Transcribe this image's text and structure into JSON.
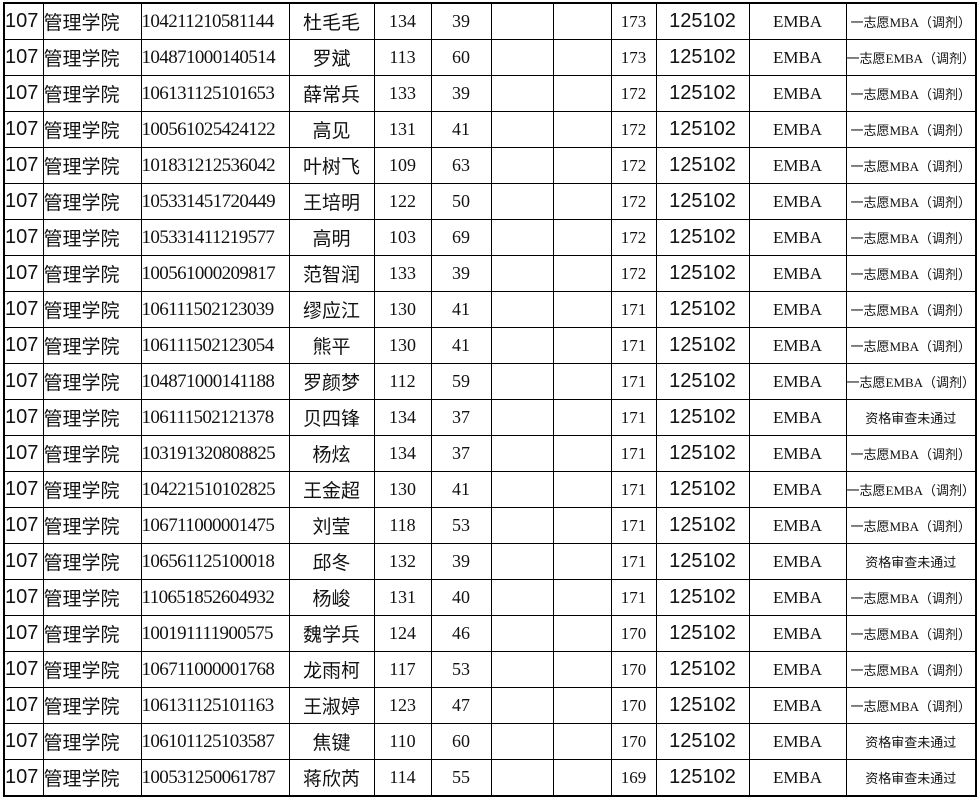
{
  "table": {
    "fields": [
      "dept_code",
      "dept_name",
      "candidate_id",
      "name",
      "score1",
      "score2",
      "blank1",
      "blank2",
      "total",
      "program_code",
      "program_name",
      "remark"
    ],
    "rows": [
      {
        "dept_code": "107",
        "dept_name": "管理学院",
        "candidate_id": "104211210581144",
        "name": "杜毛毛",
        "score1": "134",
        "score2": "39",
        "blank1": "",
        "blank2": "",
        "total": "173",
        "program_code": "125102",
        "program_name": "EMBA",
        "remark": "一志愿MBA（调剂）"
      },
      {
        "dept_code": "107",
        "dept_name": "管理学院",
        "candidate_id": "104871000140514",
        "name": "罗斌",
        "score1": "113",
        "score2": "60",
        "blank1": "",
        "blank2": "",
        "total": "173",
        "program_code": "125102",
        "program_name": "EMBA",
        "remark": "一志愿EMBA（调剂）"
      },
      {
        "dept_code": "107",
        "dept_name": "管理学院",
        "candidate_id": "106131125101653",
        "name": "薛常兵",
        "score1": "133",
        "score2": "39",
        "blank1": "",
        "blank2": "",
        "total": "172",
        "program_code": "125102",
        "program_name": "EMBA",
        "remark": "一志愿MBA（调剂）"
      },
      {
        "dept_code": "107",
        "dept_name": "管理学院",
        "candidate_id": "100561025424122",
        "name": "高见",
        "score1": "131",
        "score2": "41",
        "blank1": "",
        "blank2": "",
        "total": "172",
        "program_code": "125102",
        "program_name": "EMBA",
        "remark": "一志愿MBA（调剂）"
      },
      {
        "dept_code": "107",
        "dept_name": "管理学院",
        "candidate_id": "101831212536042",
        "name": "叶树飞",
        "score1": "109",
        "score2": "63",
        "blank1": "",
        "blank2": "",
        "total": "172",
        "program_code": "125102",
        "program_name": "EMBA",
        "remark": "一志愿MBA（调剂）"
      },
      {
        "dept_code": "107",
        "dept_name": "管理学院",
        "candidate_id": "105331451720449",
        "name": "王培明",
        "score1": "122",
        "score2": "50",
        "blank1": "",
        "blank2": "",
        "total": "172",
        "program_code": "125102",
        "program_name": "EMBA",
        "remark": "一志愿MBA（调剂）"
      },
      {
        "dept_code": "107",
        "dept_name": "管理学院",
        "candidate_id": "105331411219577",
        "name": "高明",
        "score1": "103",
        "score2": "69",
        "blank1": "",
        "blank2": "",
        "total": "172",
        "program_code": "125102",
        "program_name": "EMBA",
        "remark": "一志愿MBA（调剂）"
      },
      {
        "dept_code": "107",
        "dept_name": "管理学院",
        "candidate_id": "100561000209817",
        "name": "范智润",
        "score1": "133",
        "score2": "39",
        "blank1": "",
        "blank2": "",
        "total": "172",
        "program_code": "125102",
        "program_name": "EMBA",
        "remark": "一志愿MBA（调剂）"
      },
      {
        "dept_code": "107",
        "dept_name": "管理学院",
        "candidate_id": "106111502123039",
        "name": "缪应江",
        "score1": "130",
        "score2": "41",
        "blank1": "",
        "blank2": "",
        "total": "171",
        "program_code": "125102",
        "program_name": "EMBA",
        "remark": "一志愿MBA（调剂）"
      },
      {
        "dept_code": "107",
        "dept_name": "管理学院",
        "candidate_id": "106111502123054",
        "name": "熊平",
        "score1": "130",
        "score2": "41",
        "blank1": "",
        "blank2": "",
        "total": "171",
        "program_code": "125102",
        "program_name": "EMBA",
        "remark": "一志愿MBA（调剂）"
      },
      {
        "dept_code": "107",
        "dept_name": "管理学院",
        "candidate_id": "104871000141188",
        "name": "罗颜梦",
        "score1": "112",
        "score2": "59",
        "blank1": "",
        "blank2": "",
        "total": "171",
        "program_code": "125102",
        "program_name": "EMBA",
        "remark": "一志愿EMBA（调剂）"
      },
      {
        "dept_code": "107",
        "dept_name": "管理学院",
        "candidate_id": "106111502121378",
        "name": "贝四锋",
        "score1": "134",
        "score2": "37",
        "blank1": "",
        "blank2": "",
        "total": "171",
        "program_code": "125102",
        "program_name": "EMBA",
        "remark": "资格审查未通过"
      },
      {
        "dept_code": "107",
        "dept_name": "管理学院",
        "candidate_id": "103191320808825",
        "name": "杨炫",
        "score1": "134",
        "score2": "37",
        "blank1": "",
        "blank2": "",
        "total": "171",
        "program_code": "125102",
        "program_name": "EMBA",
        "remark": "一志愿MBA（调剂）"
      },
      {
        "dept_code": "107",
        "dept_name": "管理学院",
        "candidate_id": "104221510102825",
        "name": "王金超",
        "score1": "130",
        "score2": "41",
        "blank1": "",
        "blank2": "",
        "total": "171",
        "program_code": "125102",
        "program_name": "EMBA",
        "remark": "一志愿EMBA（调剂）"
      },
      {
        "dept_code": "107",
        "dept_name": "管理学院",
        "candidate_id": "106711000001475",
        "name": "刘莹",
        "score1": "118",
        "score2": "53",
        "blank1": "",
        "blank2": "",
        "total": "171",
        "program_code": "125102",
        "program_name": "EMBA",
        "remark": "一志愿MBA（调剂）"
      },
      {
        "dept_code": "107",
        "dept_name": "管理学院",
        "candidate_id": "106561125100018",
        "name": "邱冬",
        "score1": "132",
        "score2": "39",
        "blank1": "",
        "blank2": "",
        "total": "171",
        "program_code": "125102",
        "program_name": "EMBA",
        "remark": "资格审查未通过"
      },
      {
        "dept_code": "107",
        "dept_name": "管理学院",
        "candidate_id": "110651852604932",
        "name": "杨峻",
        "score1": "131",
        "score2": "40",
        "blank1": "",
        "blank2": "",
        "total": "171",
        "program_code": "125102",
        "program_name": "EMBA",
        "remark": "一志愿MBA（调剂）"
      },
      {
        "dept_code": "107",
        "dept_name": "管理学院",
        "candidate_id": "100191111900575",
        "name": "魏学兵",
        "score1": "124",
        "score2": "46",
        "blank1": "",
        "blank2": "",
        "total": "170",
        "program_code": "125102",
        "program_name": "EMBA",
        "remark": "一志愿MBA（调剂）"
      },
      {
        "dept_code": "107",
        "dept_name": "管理学院",
        "candidate_id": "106711000001768",
        "name": "龙雨柯",
        "score1": "117",
        "score2": "53",
        "blank1": "",
        "blank2": "",
        "total": "170",
        "program_code": "125102",
        "program_name": "EMBA",
        "remark": "一志愿MBA（调剂）"
      },
      {
        "dept_code": "107",
        "dept_name": "管理学院",
        "candidate_id": "106131125101163",
        "name": "王淑婷",
        "score1": "123",
        "score2": "47",
        "blank1": "",
        "blank2": "",
        "total": "170",
        "program_code": "125102",
        "program_name": "EMBA",
        "remark": "一志愿MBA（调剂）"
      },
      {
        "dept_code": "107",
        "dept_name": "管理学院",
        "candidate_id": "106101125103587",
        "name": "焦键",
        "score1": "110",
        "score2": "60",
        "blank1": "",
        "blank2": "",
        "total": "170",
        "program_code": "125102",
        "program_name": "EMBA",
        "remark": "资格审查未通过"
      },
      {
        "dept_code": "107",
        "dept_name": "管理学院",
        "candidate_id": "100531250061787",
        "name": "蒋欣芮",
        "score1": "114",
        "score2": "55",
        "blank1": "",
        "blank2": "",
        "total": "169",
        "program_code": "125102",
        "program_name": "EMBA",
        "remark": "资格审查未通过"
      }
    ]
  }
}
